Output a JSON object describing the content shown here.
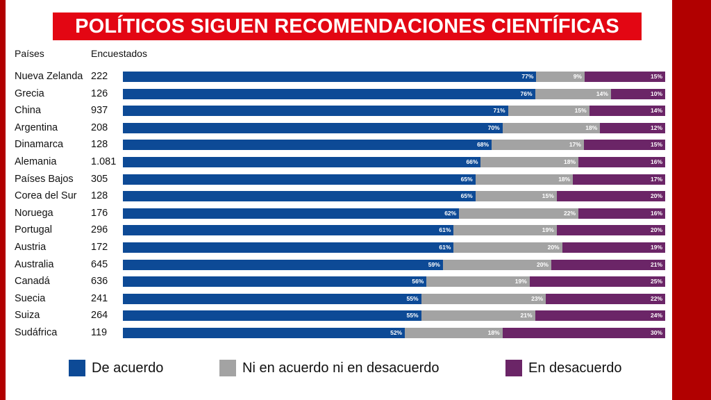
{
  "header": {
    "title": "POLÍTICOS SIGUEN RECOMENDACIONES CIENTÍFICAS",
    "col_countries": "Países",
    "col_respondents": "Encuestados"
  },
  "colors": {
    "agree": "#0d4a96",
    "neutral": "#a3a3a3",
    "disagree": "#6b2567",
    "title_bg": "#e30613",
    "frame": "#b10000"
  },
  "chart_data": {
    "type": "bar",
    "orientation": "horizontal",
    "stacked": true,
    "normalized": true,
    "title": "POLÍTICOS SIGUEN RECOMENDACIONES CIENTÍFICAS",
    "categories": [
      "Nueva Zelanda",
      "Grecia",
      "China",
      "Argentina",
      "Dinamarca",
      "Alemania",
      "Países Bajos",
      "Corea del Sur",
      "Noruega",
      "Portugal",
      "Austria",
      "Australia",
      "Canadá",
      "Suecia",
      "Suiza",
      "Sudáfrica"
    ],
    "respondents": [
      "222",
      "126",
      "937",
      "208",
      "128",
      "1.081",
      "305",
      "128",
      "176",
      "296",
      "172",
      "645",
      "636",
      "241",
      "264",
      "119"
    ],
    "series": [
      {
        "name": "De acuerdo",
        "values": [
          77,
          76,
          71,
          70,
          68,
          66,
          65,
          65,
          62,
          61,
          61,
          59,
          56,
          55,
          55,
          52
        ]
      },
      {
        "name": "Ni en acuerdo ni en desacuerdo",
        "values": [
          9,
          14,
          15,
          18,
          17,
          18,
          18,
          15,
          22,
          19,
          20,
          20,
          19,
          23,
          21,
          18
        ]
      },
      {
        "name": "En desacuerdo",
        "values": [
          15,
          10,
          14,
          12,
          15,
          16,
          17,
          20,
          16,
          20,
          19,
          21,
          25,
          22,
          24,
          30
        ]
      }
    ],
    "value_suffix": "%",
    "legend_position": "bottom"
  }
}
